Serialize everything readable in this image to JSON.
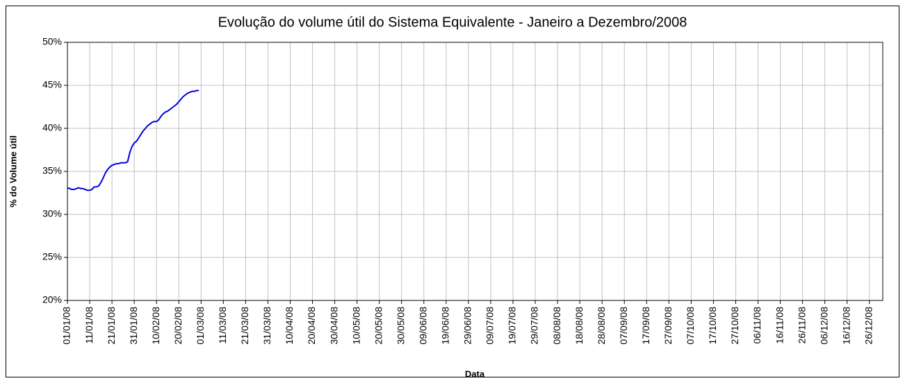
{
  "chart_data": {
    "type": "line",
    "title": "Evolução do volume útil do Sistema Equivalente - Janeiro a Dezembro/2008",
    "x_label": "Data",
    "y_label": "% do Volume útil",
    "color": "#0000e0",
    "grid": true,
    "x": [
      "01/01/08",
      "02/01/08",
      "03/01/08",
      "04/01/08",
      "05/01/08",
      "06/01/08",
      "07/01/08",
      "08/01/08",
      "09/01/08",
      "10/01/08",
      "11/01/08",
      "12/01/08",
      "13/01/08",
      "14/01/08",
      "15/01/08",
      "16/01/08",
      "17/01/08",
      "18/01/08",
      "19/01/08",
      "20/01/08",
      "21/01/08",
      "22/01/08",
      "23/01/08",
      "24/01/08",
      "25/01/08",
      "26/01/08",
      "27/01/08",
      "28/01/08",
      "29/01/08",
      "30/01/08",
      "31/01/08",
      "01/02/08",
      "02/02/08",
      "03/02/08",
      "04/02/08",
      "05/02/08",
      "06/02/08",
      "07/02/08",
      "08/02/08",
      "09/02/08",
      "10/02/08",
      "11/02/08",
      "12/02/08",
      "13/02/08",
      "14/02/08",
      "15/02/08",
      "16/02/08",
      "17/02/08",
      "18/02/08",
      "19/02/08",
      "20/02/08",
      "21/02/08",
      "22/02/08",
      "23/02/08",
      "24/02/08",
      "25/02/08",
      "26/02/08",
      "27/02/08",
      "28/02/08",
      "29/02/08"
    ],
    "values": [
      33.1,
      33.0,
      32.9,
      32.9,
      33.0,
      33.1,
      33.0,
      33.0,
      32.9,
      32.8,
      32.8,
      32.9,
      33.2,
      33.2,
      33.3,
      33.7,
      34.2,
      34.8,
      35.2,
      35.5,
      35.7,
      35.8,
      35.9,
      35.9,
      36.0,
      36.0,
      36.0,
      36.1,
      37.2,
      37.9,
      38.3,
      38.5,
      38.9,
      39.3,
      39.7,
      40.0,
      40.3,
      40.5,
      40.7,
      40.8,
      40.8,
      41.0,
      41.4,
      41.7,
      41.9,
      42.0,
      42.2,
      42.4,
      42.6,
      42.8,
      43.1,
      43.4,
      43.7,
      43.9,
      44.1,
      44.2,
      44.3,
      44.3,
      44.4,
      44.4
    ],
    "xlim": [
      "01/01/08",
      "31/12/08"
    ],
    "xticks": [
      "01/01/08",
      "11/01/08",
      "21/01/08",
      "31/01/08",
      "10/02/08",
      "20/02/08",
      "01/03/08",
      "11/03/08",
      "21/03/08",
      "31/03/08",
      "10/04/08",
      "20/04/08",
      "30/04/08",
      "10/05/08",
      "20/05/08",
      "30/05/08",
      "09/06/08",
      "19/06/08",
      "29/06/08",
      "09/07/08",
      "19/07/08",
      "29/07/08",
      "08/08/08",
      "18/08/08",
      "28/08/08",
      "07/09/08",
      "17/09/08",
      "27/09/08",
      "07/10/08",
      "17/10/08",
      "27/10/08",
      "06/11/08",
      "16/11/08",
      "26/11/08",
      "06/12/08",
      "16/12/08",
      "26/12/08"
    ],
    "ylim": [
      20,
      50
    ],
    "yticks": [
      {
        "value": 20,
        "label": "20%"
      },
      {
        "value": 25,
        "label": "25%"
      },
      {
        "value": 30,
        "label": "30%"
      },
      {
        "value": 35,
        "label": "35%"
      },
      {
        "value": 40,
        "label": "40%"
      },
      {
        "value": 45,
        "label": "45%"
      },
      {
        "value": 50,
        "label": "50%"
      }
    ]
  }
}
